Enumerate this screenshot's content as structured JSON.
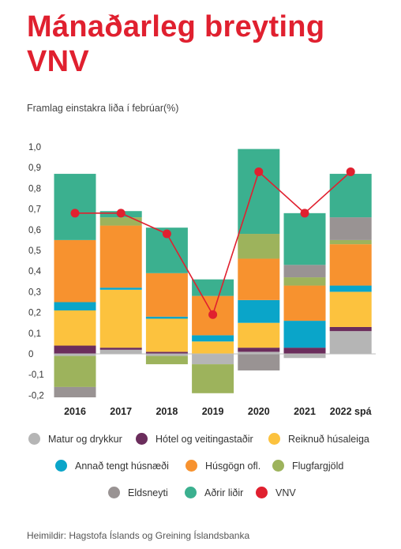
{
  "header": {
    "title": "Mánaðarleg breyting VNV",
    "subtitle": "Framlag einstakra liða í febrúar(%)"
  },
  "source": "Heimildir: Hagstofa Íslands og Greining Íslandsbanka",
  "chart_data": {
    "type": "bar",
    "stacked": true,
    "categories": [
      "2016",
      "2017",
      "2018",
      "2019",
      "2020",
      "2021",
      "2022 spá"
    ],
    "ylim": [
      -0.2,
      1.0
    ],
    "yticks": [
      "1,0",
      "0,9",
      "0,8",
      "0,7",
      "0,6",
      "0,5",
      "0,4",
      "0,3",
      "0,2",
      "0,1",
      "0",
      "-0,1",
      "-0,2"
    ],
    "grid": false,
    "legend_position": "bottom",
    "series": [
      {
        "name": "Matur og drykkur",
        "color": "#b5b5b5",
        "values": [
          -0.01,
          0.02,
          -0.01,
          -0.05,
          0.01,
          -0.02,
          0.11
        ]
      },
      {
        "name": "Hótel og veitingastaðir",
        "color": "#6b2d5c",
        "values": [
          0.04,
          0.01,
          0.01,
          0.0,
          0.02,
          0.03,
          0.02
        ]
      },
      {
        "name": "Reiknuð húsaleiga",
        "color": "#fcc23e",
        "values": [
          0.17,
          0.28,
          0.16,
          0.06,
          0.12,
          0.0,
          0.17
        ]
      },
      {
        "name": "Annað tengt húsnæði",
        "color": "#0aa5c9",
        "values": [
          0.04,
          0.01,
          0.01,
          0.03,
          0.11,
          0.13,
          0.03
        ]
      },
      {
        "name": "Húsgögn ofl.",
        "color": "#f7922f",
        "values": [
          0.3,
          0.3,
          0.21,
          0.19,
          0.2,
          0.17,
          0.2
        ]
      },
      {
        "name": "Flugfargjöld",
        "color": "#9db35c",
        "values": [
          -0.15,
          0.04,
          -0.04,
          -0.14,
          0.12,
          0.04,
          0.02
        ]
      },
      {
        "name": "Eldsneyti",
        "color": "#999393",
        "values": [
          -0.05,
          0.0,
          0.0,
          0.0,
          -0.08,
          0.06,
          0.11
        ]
      },
      {
        "name": "Aðrir liðir",
        "color": "#3bb08f",
        "values": [
          0.32,
          0.03,
          0.22,
          0.08,
          0.41,
          0.25,
          0.21
        ]
      }
    ],
    "line": {
      "name": "VNV",
      "color": "#e0202f",
      "values": [
        0.68,
        0.68,
        0.58,
        0.19,
        0.88,
        0.68,
        0.88
      ]
    }
  }
}
